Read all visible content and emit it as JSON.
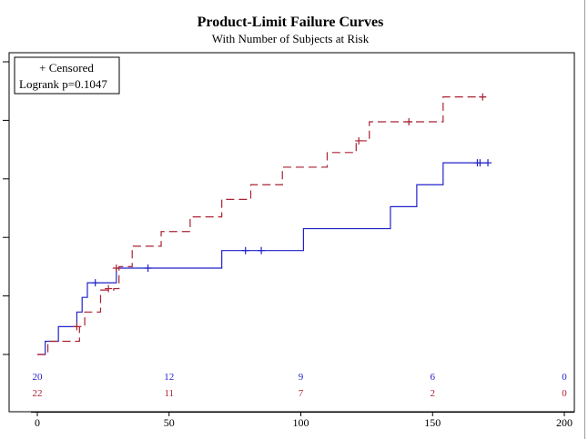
{
  "chart_data": {
    "type": "line",
    "title": "Product-Limit Failure Curves",
    "subtitle": "With Number of Subjects at Risk",
    "xlim": [
      0,
      200
    ],
    "x_ticks": [
      "0",
      "50",
      "100",
      "150",
      "200"
    ],
    "ylim": [
      0,
      1
    ],
    "y_tick_labels_shown": false,
    "legend": {
      "position": "top-left",
      "censored_label": "+ Censored",
      "test_label": "Logrank p=0.1047"
    },
    "series": [
      {
        "color": "#2222cc",
        "style": "solid",
        "steps": [
          [
            0,
            0.0
          ],
          [
            3,
            0.045
          ],
          [
            8,
            0.095
          ],
          [
            15,
            0.145
          ],
          [
            17,
            0.195
          ],
          [
            19,
            0.245
          ],
          [
            30,
            0.295
          ],
          [
            70,
            0.355
          ],
          [
            101,
            0.43
          ],
          [
            134,
            0.505
          ],
          [
            144,
            0.58
          ],
          [
            154,
            0.655
          ],
          [
            171,
            0.655
          ]
        ],
        "censored": [
          [
            22,
            0.245
          ],
          [
            42,
            0.295
          ],
          [
            79,
            0.355
          ],
          [
            85,
            0.355
          ],
          [
            167,
            0.655
          ],
          [
            168,
            0.655
          ],
          [
            171,
            0.655
          ]
        ],
        "at_risk": [
          {
            "x": 0,
            "n": "20"
          },
          {
            "x": 50,
            "n": "12"
          },
          {
            "x": 100,
            "n": "9"
          },
          {
            "x": 150,
            "n": "6"
          },
          {
            "x": 200,
            "n": "0"
          }
        ]
      },
      {
        "color": "#aa2233",
        "style": "dashed",
        "steps": [
          [
            0,
            0.0
          ],
          [
            4,
            0.045
          ],
          [
            16,
            0.095
          ],
          [
            18,
            0.145
          ],
          [
            24,
            0.22
          ],
          [
            29,
            0.225
          ],
          [
            31,
            0.3
          ],
          [
            36,
            0.37
          ],
          [
            47,
            0.42
          ],
          [
            58,
            0.47
          ],
          [
            70,
            0.53
          ],
          [
            81,
            0.58
          ],
          [
            93,
            0.64
          ],
          [
            110,
            0.69
          ],
          [
            121,
            0.73
          ],
          [
            126,
            0.795
          ],
          [
            154,
            0.88
          ],
          [
            170,
            0.88
          ]
        ],
        "censored": [
          [
            15,
            0.095
          ],
          [
            27,
            0.225
          ],
          [
            30,
            0.295
          ],
          [
            122,
            0.73
          ],
          [
            141,
            0.795
          ],
          [
            169,
            0.88
          ]
        ],
        "at_risk": [
          {
            "x": 0,
            "n": "22"
          },
          {
            "x": 50,
            "n": "11"
          },
          {
            "x": 100,
            "n": "7"
          },
          {
            "x": 150,
            "n": "2"
          },
          {
            "x": 200,
            "n": "0"
          }
        ]
      }
    ]
  }
}
